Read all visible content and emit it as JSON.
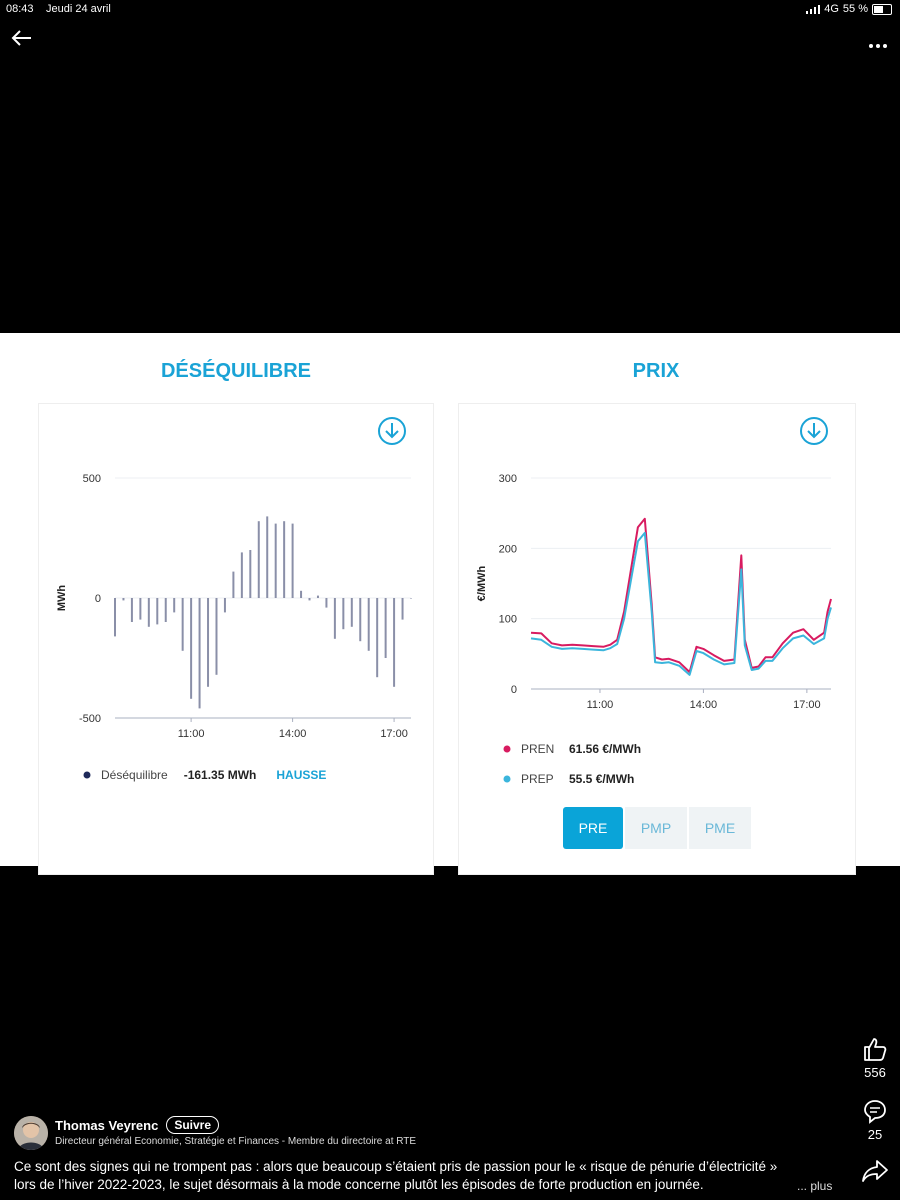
{
  "status": {
    "time": "08:43",
    "date": "Jeudi 24 avril",
    "network": "4G",
    "battery": "55 %"
  },
  "topbar": {
    "back_icon": "arrow-left-icon",
    "more_icon": "more-dots-icon"
  },
  "desequilibre": {
    "title": "DÉSÉQUILIBRE",
    "legend_label": "Déséquilibre",
    "legend_value": "-161.35 MWh",
    "legend_status": "HAUSSE",
    "colors": {
      "bar": "#8a8fa8",
      "title": "#1aa3d6",
      "dot": "#1f2a5a"
    }
  },
  "prix": {
    "title": "PRIX",
    "legend": [
      {
        "label": "PREN",
        "value": "61.56 €/MWh",
        "color": "#d81b60"
      },
      {
        "label": "PREP",
        "value": "55.5 €/MWh",
        "color": "#3bb5dc"
      }
    ],
    "tabs": [
      {
        "label": "PRE",
        "active": true
      },
      {
        "label": "PMP",
        "active": false
      },
      {
        "label": "PME",
        "active": false
      }
    ]
  },
  "chart_data": [
    {
      "type": "bar",
      "ylabel": "MWh",
      "ylim": [
        -500,
        500
      ],
      "yticks": [
        "500",
        "0",
        "-500"
      ],
      "xticks": [
        "11:00",
        "14:00",
        "17:00"
      ],
      "xtick_hours": [
        11,
        14,
        17
      ],
      "xlim_hours": [
        8.75,
        17.5
      ],
      "grid": true,
      "hours": [
        8.75,
        9.0,
        9.25,
        9.5,
        9.75,
        10.0,
        10.25,
        10.5,
        10.75,
        11.0,
        11.25,
        11.5,
        11.75,
        12.0,
        12.25,
        12.5,
        12.75,
        13.0,
        13.25,
        13.5,
        13.75,
        14.0,
        14.25,
        14.5,
        14.75,
        15.0,
        15.25,
        15.5,
        15.75,
        16.0,
        16.25,
        16.5,
        16.75,
        17.0,
        17.25,
        17.5
      ],
      "values": [
        -160,
        -10,
        -100,
        -90,
        -120,
        -110,
        -100,
        -60,
        -220,
        -420,
        -460,
        -370,
        -320,
        -60,
        110,
        190,
        200,
        320,
        340,
        310,
        320,
        310,
        30,
        -10,
        10,
        -40,
        -170,
        -130,
        -120,
        -180,
        -220,
        -330,
        -250,
        -370,
        -90,
        0
      ]
    },
    {
      "type": "line",
      "ylabel": "€/MWh",
      "ylim": [
        0,
        300
      ],
      "yticks": [
        "300",
        "200",
        "100",
        "0"
      ],
      "xticks": [
        "11:00",
        "14:00",
        "17:00"
      ],
      "xtick_hours": [
        11,
        14,
        17
      ],
      "xlim_hours": [
        9.0,
        17.7
      ],
      "grid": true,
      "x": [
        9.0,
        9.3,
        9.6,
        9.9,
        10.2,
        10.5,
        10.8,
        11.1,
        11.3,
        11.5,
        11.7,
        11.9,
        12.1,
        12.3,
        12.5,
        12.6,
        12.8,
        13.0,
        13.3,
        13.6,
        13.8,
        14.0,
        14.3,
        14.6,
        14.9,
        15.1,
        15.2,
        15.4,
        15.6,
        15.8,
        16.0,
        16.3,
        16.6,
        16.9,
        17.2,
        17.5,
        17.6,
        17.7
      ],
      "series": [
        {
          "name": "PREN",
          "values": [
            80,
            79,
            65,
            62,
            63,
            62,
            61,
            60,
            63,
            70,
            110,
            170,
            230,
            242,
            120,
            45,
            42,
            43,
            38,
            24,
            60,
            57,
            48,
            40,
            42,
            190,
            70,
            30,
            32,
            45,
            45,
            65,
            80,
            85,
            70,
            80,
            110,
            128
          ]
        },
        {
          "name": "PREP",
          "values": [
            72,
            70,
            60,
            57,
            58,
            57,
            56,
            55,
            58,
            64,
            100,
            155,
            210,
            222,
            110,
            38,
            37,
            38,
            33,
            20,
            54,
            51,
            42,
            35,
            37,
            170,
            62,
            27,
            29,
            40,
            40,
            58,
            72,
            76,
            64,
            72,
            100,
            116
          ]
        }
      ]
    }
  ],
  "social": {
    "like_count": "556",
    "comment_count": "25",
    "like_icon": "thumbs-up-icon",
    "comment_icon": "comment-icon",
    "share_icon": "share-icon"
  },
  "author": {
    "name": "Thomas Veyrenc",
    "follow_label": "Suivre",
    "title": "Directeur général Economie, Stratégie et Finances - Membre du directoire at RTE"
  },
  "caption": {
    "line1": "Ce sont des signes qui ne trompent pas : alors que beaucoup s’étaient pris de passion pour le « risque de pénurie d’électricité »",
    "line2": "lors de l’hiver 2022-2023, le sujet désormais à la mode concerne plutôt les épisodes de forte production en journée.",
    "more": "... plus"
  }
}
